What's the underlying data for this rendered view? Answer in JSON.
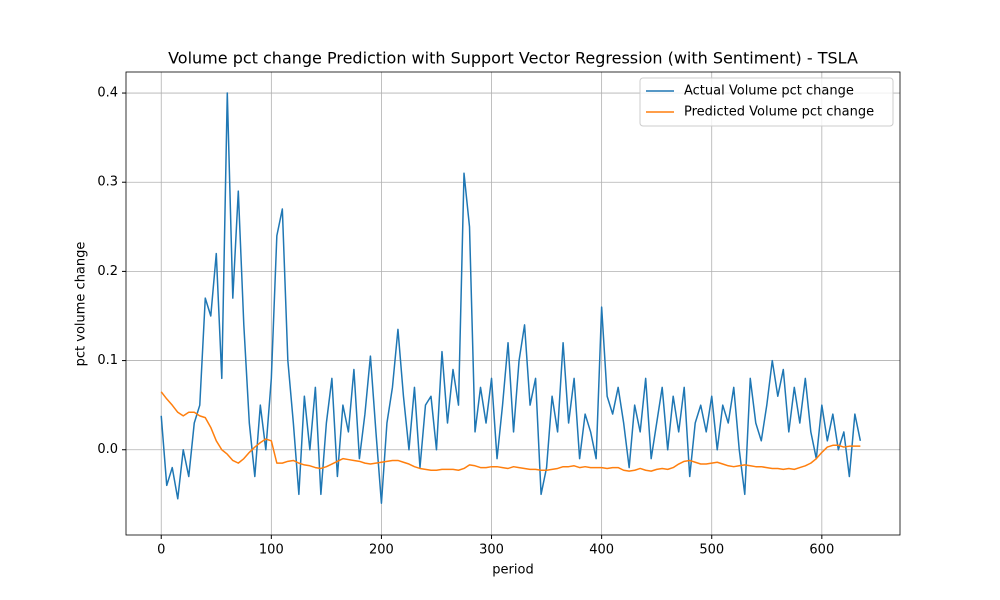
{
  "chart_data": {
    "type": "line",
    "title": "Volume pct change Prediction with Support Vector Regression (with Sentiment) - TSLA",
    "xlabel": "period",
    "ylabel": "pct volume change",
    "x": [
      0,
      5,
      10,
      15,
      20,
      25,
      30,
      35,
      40,
      45,
      50,
      55,
      60,
      65,
      70,
      75,
      80,
      85,
      90,
      95,
      100,
      105,
      110,
      115,
      120,
      125,
      130,
      135,
      140,
      145,
      150,
      155,
      160,
      165,
      170,
      175,
      180,
      185,
      190,
      195,
      200,
      205,
      210,
      215,
      220,
      225,
      230,
      235,
      240,
      245,
      250,
      255,
      260,
      265,
      270,
      275,
      280,
      285,
      290,
      295,
      300,
      305,
      310,
      315,
      320,
      325,
      330,
      335,
      340,
      345,
      350,
      355,
      360,
      365,
      370,
      375,
      380,
      385,
      390,
      395,
      400,
      405,
      410,
      415,
      420,
      425,
      430,
      435,
      440,
      445,
      450,
      455,
      460,
      465,
      470,
      475,
      480,
      485,
      490,
      495,
      500,
      505,
      510,
      515,
      520,
      525,
      530,
      535,
      540,
      545,
      550,
      555,
      560,
      565,
      570,
      575,
      580,
      585,
      590,
      595,
      600,
      605,
      610,
      615,
      620,
      625,
      630,
      635
    ],
    "series": [
      {
        "name": "Actual Volume pct change",
        "color": "#1f77b4",
        "values": [
          0.038,
          -0.04,
          -0.02,
          -0.055,
          0.0,
          -0.03,
          0.03,
          0.05,
          0.17,
          0.15,
          0.22,
          0.08,
          0.4,
          0.17,
          0.29,
          0.14,
          0.03,
          -0.03,
          0.05,
          0.0,
          0.08,
          0.24,
          0.27,
          0.1,
          0.03,
          -0.05,
          0.06,
          0.0,
          0.07,
          -0.05,
          0.03,
          0.08,
          -0.03,
          0.05,
          0.02,
          0.09,
          -0.01,
          0.04,
          0.105,
          0.02,
          -0.06,
          0.03,
          0.07,
          0.135,
          0.06,
          0.0,
          0.07,
          -0.02,
          0.05,
          0.06,
          0.0,
          0.11,
          0.03,
          0.09,
          0.05,
          0.31,
          0.25,
          0.02,
          0.07,
          0.03,
          0.08,
          -0.01,
          0.05,
          0.12,
          0.02,
          0.1,
          0.14,
          0.05,
          0.08,
          -0.05,
          -0.02,
          0.06,
          0.02,
          0.12,
          0.03,
          0.08,
          -0.01,
          0.04,
          0.02,
          -0.01,
          0.16,
          0.06,
          0.04,
          0.07,
          0.03,
          -0.02,
          0.05,
          0.02,
          0.08,
          -0.01,
          0.03,
          0.07,
          0.0,
          0.06,
          0.02,
          0.07,
          -0.03,
          0.03,
          0.05,
          0.02,
          0.06,
          0.0,
          0.05,
          0.03,
          0.07,
          0.0,
          -0.05,
          0.08,
          0.03,
          0.01,
          0.05,
          0.1,
          0.06,
          0.09,
          0.02,
          0.07,
          0.03,
          0.08,
          0.02,
          -0.01,
          0.05,
          0.01,
          0.04,
          0.0,
          0.02,
          -0.03,
          0.04,
          0.01
        ]
      },
      {
        "name": "Predicted Volume pct change",
        "color": "#ff7f0e",
        "values": [
          0.065,
          0.057,
          0.05,
          0.042,
          0.038,
          0.042,
          0.042,
          0.038,
          0.036,
          0.025,
          0.01,
          0.0,
          -0.005,
          -0.012,
          -0.015,
          -0.01,
          -0.003,
          0.003,
          0.008,
          0.012,
          0.01,
          -0.015,
          -0.015,
          -0.013,
          -0.012,
          -0.015,
          -0.017,
          -0.018,
          -0.02,
          -0.021,
          -0.019,
          -0.016,
          -0.013,
          -0.01,
          -0.011,
          -0.012,
          -0.013,
          -0.015,
          -0.016,
          -0.015,
          -0.014,
          -0.013,
          -0.012,
          -0.012,
          -0.014,
          -0.016,
          -0.019,
          -0.021,
          -0.022,
          -0.023,
          -0.023,
          -0.022,
          -0.022,
          -0.022,
          -0.023,
          -0.021,
          -0.017,
          -0.018,
          -0.02,
          -0.02,
          -0.019,
          -0.019,
          -0.02,
          -0.021,
          -0.019,
          -0.02,
          -0.021,
          -0.022,
          -0.022,
          -0.023,
          -0.023,
          -0.022,
          -0.021,
          -0.019,
          -0.019,
          -0.018,
          -0.02,
          -0.019,
          -0.02,
          -0.02,
          -0.02,
          -0.021,
          -0.02,
          -0.02,
          -0.023,
          -0.024,
          -0.023,
          -0.021,
          -0.023,
          -0.024,
          -0.022,
          -0.021,
          -0.022,
          -0.02,
          -0.016,
          -0.013,
          -0.012,
          -0.014,
          -0.016,
          -0.016,
          -0.015,
          -0.014,
          -0.016,
          -0.018,
          -0.019,
          -0.018,
          -0.017,
          -0.018,
          -0.019,
          -0.019,
          -0.02,
          -0.021,
          -0.021,
          -0.022,
          -0.021,
          -0.022,
          -0.02,
          -0.018,
          -0.015,
          -0.01,
          -0.003,
          0.003,
          0.005,
          0.005,
          0.003,
          0.004,
          0.004,
          0.004
        ]
      }
    ],
    "xlim": [
      -32,
      671
    ],
    "ylim": [
      -0.0956,
      0.4236
    ],
    "xticks": [
      0,
      100,
      200,
      300,
      400,
      500,
      600
    ],
    "yticks": [
      {
        "value": 0,
        "label": "0.0"
      },
      0.1,
      0.2,
      0.3,
      0.4
    ],
    "grid": true,
    "legend": "upper right"
  }
}
